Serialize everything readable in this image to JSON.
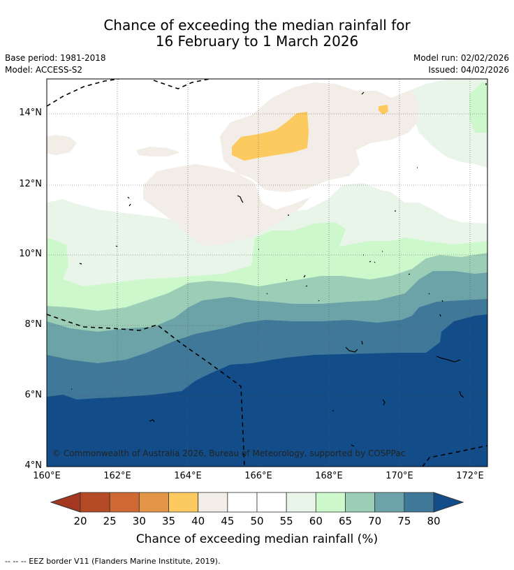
{
  "title": {
    "line1": "Chance of exceeding the median rainfall for",
    "line2": "16 February to 1 March 2026"
  },
  "meta": {
    "base_period": "Base period: 1981-2018",
    "model": "Model: ACCESS-S2",
    "model_run": "Model run: 02/02/2026",
    "issued": "Issued: 04/02/2026"
  },
  "map": {
    "lat_labels": [
      "14°N",
      "12°N",
      "10°N",
      "8°N",
      "6°N",
      "4°N"
    ],
    "lon_labels": [
      "160°E",
      "162°E",
      "164°E",
      "166°E",
      "168°E",
      "170°E",
      "172°E"
    ],
    "copyright": "© Commonwealth of Australia 2026, Bureau of Meteorology, supported by COSPPac",
    "layers": [
      {
        "name": "above-80",
        "color": "#134d89"
      },
      {
        "name": "75-80",
        "color": "#3f7898"
      },
      {
        "name": "70-75",
        "color": "#6ba3a8"
      },
      {
        "name": "65-70",
        "color": "#9ccdb6"
      },
      {
        "name": "60-65",
        "color": "#ccf8cc"
      },
      {
        "name": "55-60",
        "color": "#e9f5e8"
      },
      {
        "name": "40-45",
        "color": "#f2ede6"
      },
      {
        "name": "35-40",
        "color": "#fdca60"
      }
    ]
  },
  "colorbar": {
    "ticks": [
      "20",
      "25",
      "30",
      "35",
      "40",
      "45",
      "50",
      "55",
      "60",
      "65",
      "70",
      "75",
      "80"
    ],
    "colors": [
      "#a4371f",
      "#b44a26",
      "#cf6832",
      "#e29547",
      "#fdca60",
      "#f2ede6",
      "#ffffff",
      "#ffffff",
      "#e9f5e8",
      "#ccf8cc",
      "#9ccdb6",
      "#6ba3a8",
      "#3f7898",
      "#134d89"
    ],
    "label": "Chance of exceeding median rainfall (%)"
  },
  "footnote": "--  --  -- EEZ border V11 (Flanders Marine Institute, 2019)."
}
